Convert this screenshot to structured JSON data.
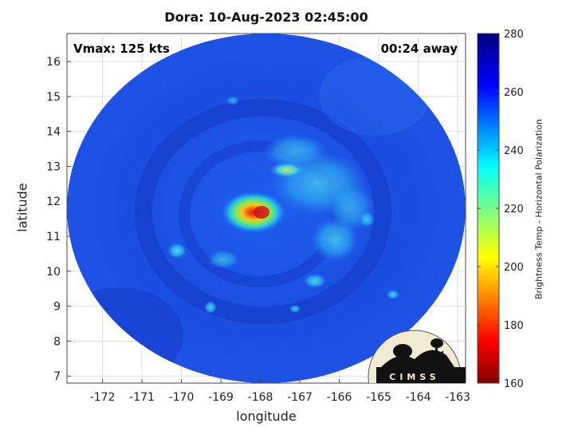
{
  "title": "Dora: 10-Aug-2023 02:45:00",
  "annotations": {
    "vmax": "Vmax: 125 kts",
    "away": "00:24 away"
  },
  "map": {
    "xlabel": "longitude",
    "ylabel": "latitude",
    "xlim": [
      -172.9,
      -162.8
    ],
    "ylim": [
      6.8,
      16.8
    ],
    "xticks": [
      -172,
      -171,
      -170,
      -169,
      -168,
      -167,
      -166,
      -165,
      -164,
      -163
    ],
    "yticks": [
      7,
      8,
      9,
      10,
      11,
      12,
      13,
      14,
      15,
      16
    ],
    "grid": true,
    "swath_center": [
      -167.85,
      11.7
    ],
    "storm_center": [
      -167.85,
      11.6
    ]
  },
  "colorbar": {
    "label": "Brightness Temp - Horizontal Polarization",
    "min": 160,
    "max": 280,
    "ticks": [
      160,
      180,
      200,
      220,
      240,
      260,
      280
    ],
    "colormap": "jet"
  },
  "logo": {
    "text": "CIMSS"
  },
  "colors": {
    "background_blue": "#1f4fe6",
    "ring_blue": "#173fd0",
    "core_red": "#e8241b"
  }
}
